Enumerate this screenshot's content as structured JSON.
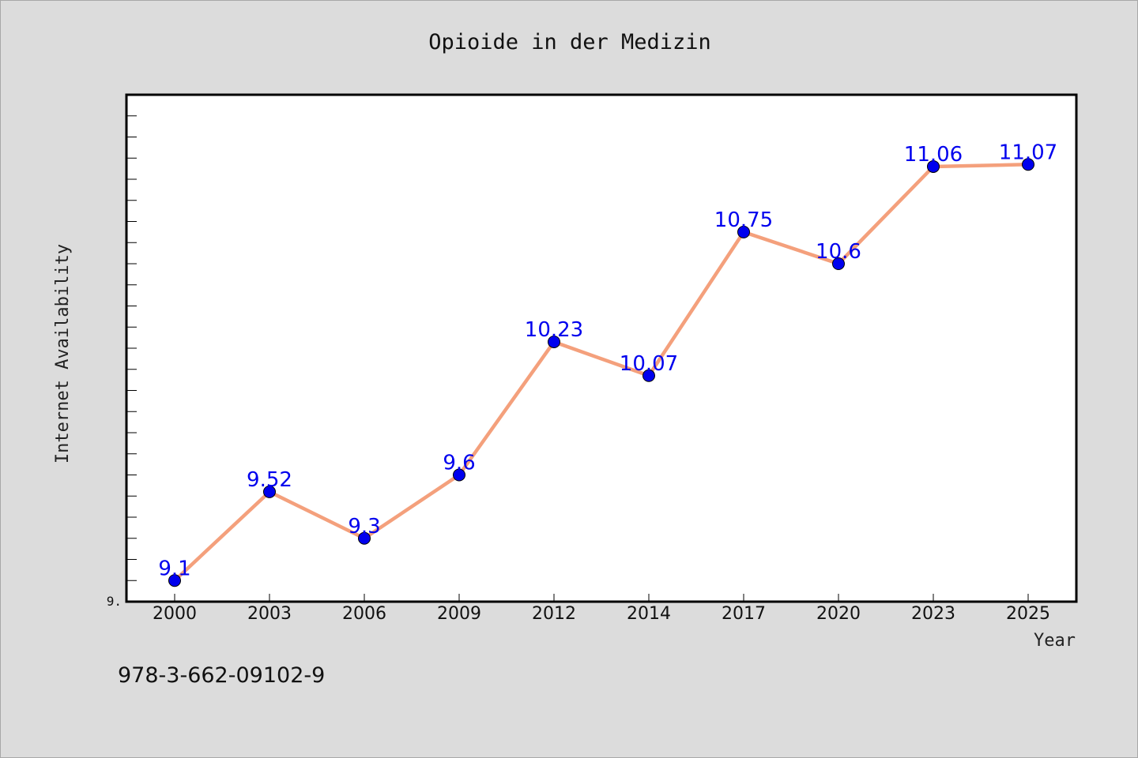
{
  "chart_data": {
    "type": "line",
    "title": "Opioide in der Medizin",
    "xlabel": "Year",
    "ylabel": "Internet Availability",
    "categories": [
      "2000",
      "2003",
      "2006",
      "2009",
      "2012",
      "2014",
      "2017",
      "2020",
      "2023",
      "2025"
    ],
    "series": [
      {
        "values": [
          9.1,
          9.52,
          9.3,
          9.6,
          10.23,
          10.07,
          10.75,
          10.6,
          11.06,
          11.07
        ],
        "data_labels": [
          "9.1",
          "9.52",
          "9.3",
          "9.6",
          "10.23",
          "10.07",
          "10.75",
          "10.6",
          "11.06",
          "11.07"
        ],
        "line_color": "#f4a07c",
        "marker_color": "#0000ee"
      }
    ],
    "ylim": [
      9.0,
      11.4
    ],
    "ytick_labels": [
      "9."
    ],
    "yminor_step": 0.1,
    "grid": false,
    "legend": "none"
  },
  "footer": {
    "isbn": "978-3-662-09102-9"
  },
  "colors": {
    "background": "#dcdcdc",
    "plot_background": "#ffffff",
    "data_label": "#0000ee"
  }
}
